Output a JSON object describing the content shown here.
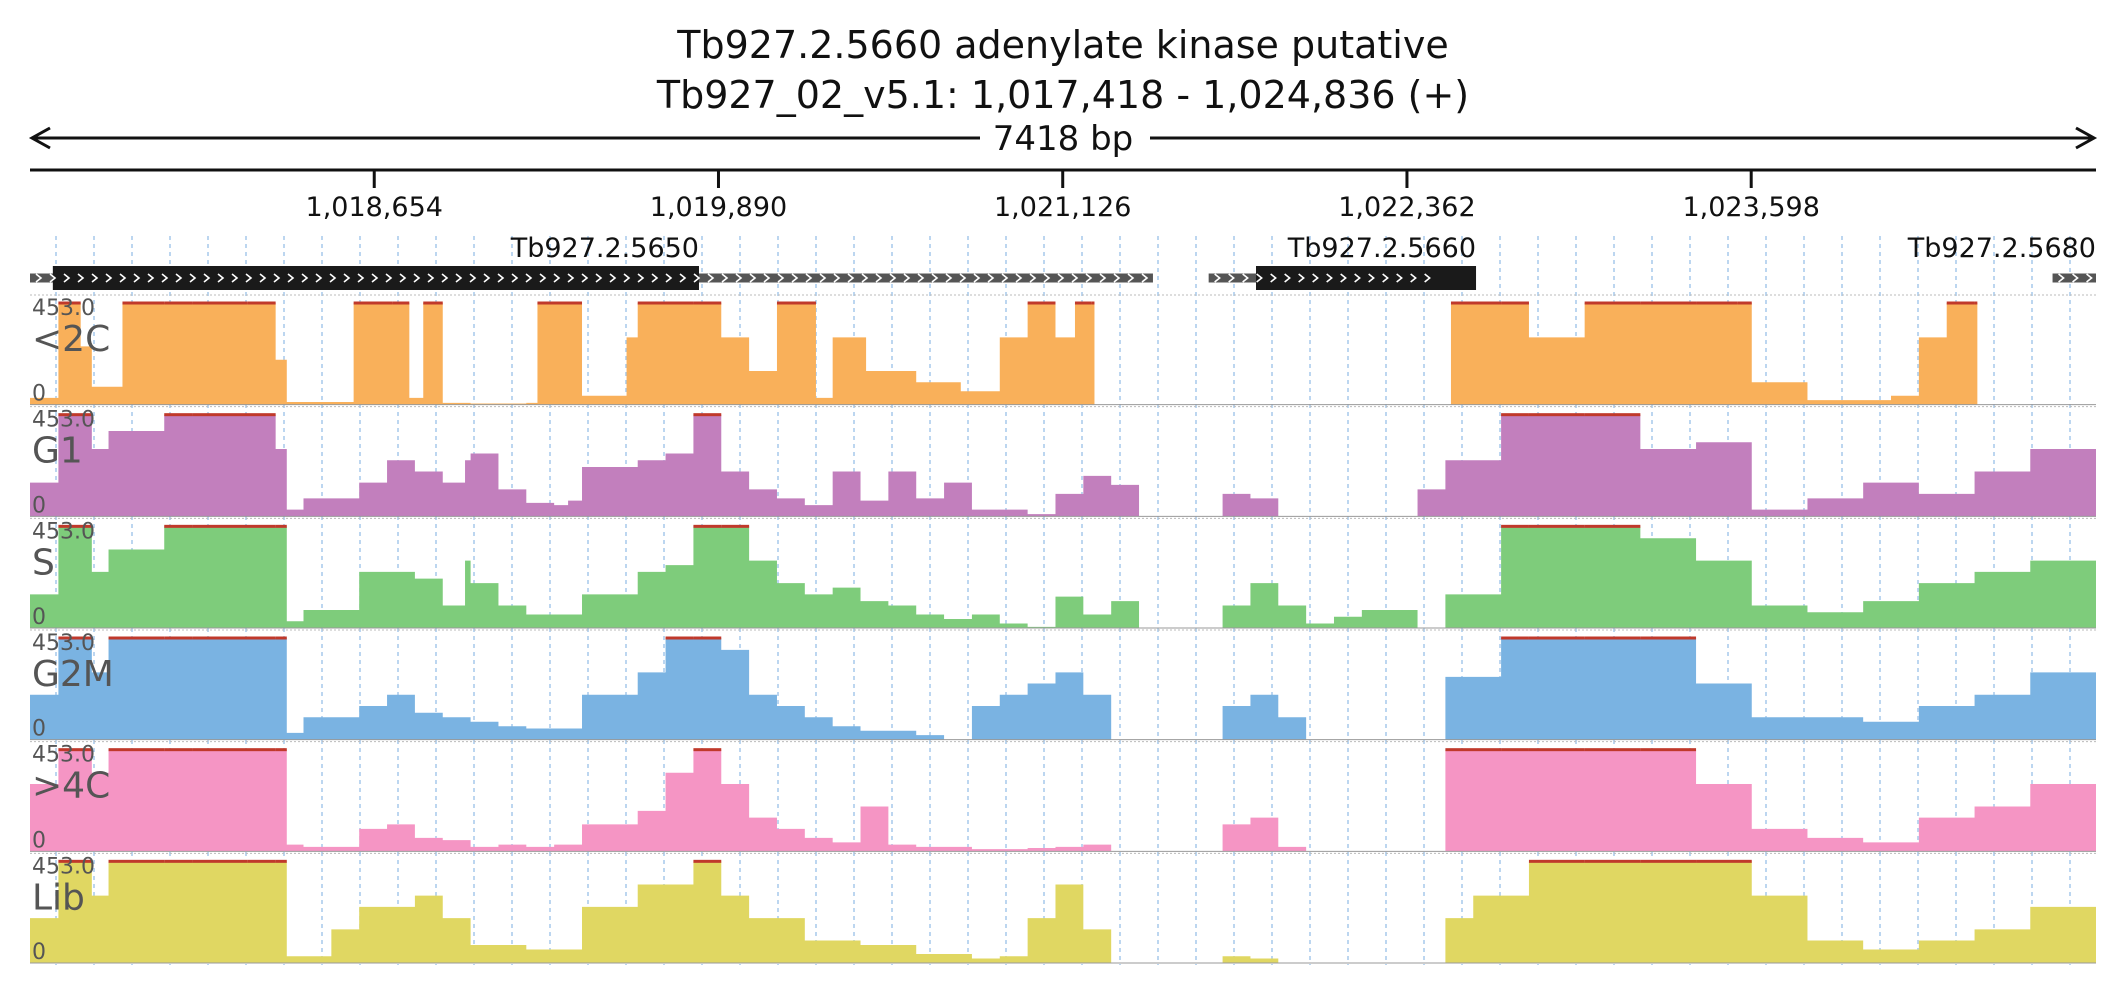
{
  "title": {
    "line1": "Tb927.2.5660  adenylate kinase  putative",
    "line2": "Tb927_02_v5.1: 1,017,418 - 1,024,836 (+)"
  },
  "span_label": "7418 bp",
  "chart_data": {
    "type": "area",
    "region": {
      "chrom": "Tb927_02_v5.1",
      "start": 1017418,
      "end": 1024836,
      "strand": "+"
    },
    "xlim": [
      1017418,
      1024836
    ],
    "x_ticks": [
      {
        "pos": 1018654,
        "label": "1,018,654"
      },
      {
        "pos": 1019890,
        "label": "1,019,890"
      },
      {
        "pos": 1021126,
        "label": "1,021,126"
      },
      {
        "pos": 1022362,
        "label": "1,022,362"
      },
      {
        "pos": 1023598,
        "label": "1,023,598"
      }
    ],
    "genes": [
      {
        "name": "Tb927.2.5650",
        "start": 1017418,
        "end": 1021450,
        "cds_start": 1017500,
        "cds_end": 1019820,
        "strand": "+"
      },
      {
        "name": "Tb927.2.5660",
        "start": 1021650,
        "end": 1022480,
        "cds_start": 1021820,
        "cds_end": 1022610,
        "strand": "+"
      },
      {
        "name": "Tb927.2.5680",
        "start": 1024680,
        "end": 1024836,
        "cds_start": null,
        "cds_end": null,
        "strand": "+"
      }
    ],
    "ylim": [
      0,
      453.0
    ],
    "y_max_label": "453.0",
    "y_min_label": "0",
    "tracks": [
      {
        "name": "<2C",
        "color": "#f9b05a",
        "x": [
          1017418,
          1017520,
          1017600,
          1017640,
          1017750,
          1017900,
          1018000,
          1018200,
          1018300,
          1018340,
          1018420,
          1018580,
          1018720,
          1018780,
          1018830,
          1018900,
          1019000,
          1019200,
          1019240,
          1019400,
          1019560,
          1019600,
          1019800,
          1019900,
          1020000,
          1020100,
          1020240,
          1020300,
          1020420,
          1020600,
          1020760,
          1020900,
          1021000,
          1021100,
          1021170,
          1021230,
          1021240,
          1021300,
          1022400,
          1022520,
          1022700,
          1022800,
          1023000,
          1023200,
          1023400,
          1023550,
          1023600,
          1023800,
          1024100,
          1024200,
          1024300,
          1024400,
          1024410,
          1024520,
          1024836
        ],
        "values": [
          30,
          453,
          260,
          80,
          453,
          453,
          453,
          453,
          200,
          12,
          12,
          453,
          453,
          30,
          453,
          8,
          5,
          8,
          453,
          40,
          300,
          453,
          453,
          300,
          150,
          453,
          30,
          300,
          150,
          100,
          60,
          300,
          453,
          300,
          453,
          453,
          0,
          0,
          0,
          453,
          453,
          300,
          453,
          453,
          453,
          453,
          100,
          20,
          40,
          300,
          453,
          453,
          0,
          0,
          0
        ]
      },
      {
        "name": "G1",
        "color": "#c27fbd",
        "x": [
          1017418,
          1017520,
          1017640,
          1017700,
          1017900,
          1018000,
          1018300,
          1018340,
          1018400,
          1018600,
          1018700,
          1018800,
          1018900,
          1018980,
          1019000,
          1019100,
          1019200,
          1019300,
          1019350,
          1019400,
          1019600,
          1019700,
          1019800,
          1019900,
          1020000,
          1020100,
          1020200,
          1020300,
          1020400,
          1020500,
          1020600,
          1020700,
          1020800,
          1020900,
          1021000,
          1021100,
          1021200,
          1021300,
          1021400,
          1021500,
          1021520,
          1021700,
          1021800,
          1021900,
          1022100,
          1022200,
          1022400,
          1022500,
          1022700,
          1022800,
          1023000,
          1023200,
          1023400,
          1023600,
          1023800,
          1024000,
          1024200,
          1024400,
          1024600,
          1024836
        ],
        "values": [
          150,
          453,
          300,
          380,
          453,
          453,
          300,
          30,
          80,
          150,
          250,
          200,
          150,
          250,
          280,
          120,
          60,
          50,
          70,
          220,
          250,
          280,
          453,
          200,
          120,
          80,
          50,
          200,
          70,
          200,
          80,
          150,
          30,
          30,
          10,
          100,
          180,
          140,
          0,
          0,
          0,
          100,
          80,
          0,
          0,
          0,
          120,
          250,
          453,
          453,
          453,
          300,
          330,
          30,
          80,
          150,
          100,
          200,
          300,
          453
        ]
      },
      {
        "name": "S",
        "color": "#7ecc7b",
        "x": [
          1017418,
          1017520,
          1017640,
          1017700,
          1017900,
          1018000,
          1018300,
          1018340,
          1018400,
          1018600,
          1018800,
          1018900,
          1018980,
          1019000,
          1019100,
          1019200,
          1019400,
          1019600,
          1019700,
          1019800,
          1019900,
          1020000,
          1020100,
          1020200,
          1020300,
          1020400,
          1020500,
          1020600,
          1020700,
          1020800,
          1020900,
          1021000,
          1021100,
          1021200,
          1021300,
          1021400,
          1021500,
          1021520,
          1021700,
          1021800,
          1021900,
          1022000,
          1022100,
          1022200,
          1022400,
          1022500,
          1022700,
          1022800,
          1023000,
          1023200,
          1023400,
          1023600,
          1023800,
          1024000,
          1024200,
          1024400,
          1024600,
          1024836
        ],
        "values": [
          150,
          453,
          250,
          350,
          453,
          453,
          453,
          30,
          80,
          250,
          220,
          100,
          300,
          200,
          100,
          60,
          150,
          250,
          280,
          453,
          453,
          300,
          200,
          150,
          180,
          120,
          100,
          60,
          40,
          60,
          20,
          5,
          140,
          60,
          120,
          0,
          0,
          0,
          100,
          200,
          100,
          20,
          50,
          80,
          0,
          150,
          453,
          453,
          453,
          400,
          300,
          100,
          70,
          120,
          200,
          250,
          300,
          453
        ]
      },
      {
        "name": "G2M",
        "color": "#7ab3e2",
        "x": [
          1017418,
          1017520,
          1017640,
          1017700,
          1017900,
          1018000,
          1018300,
          1018340,
          1018400,
          1018600,
          1018700,
          1018800,
          1018900,
          1019000,
          1019100,
          1019200,
          1019300,
          1019400,
          1019600,
          1019700,
          1019800,
          1019900,
          1020000,
          1020100,
          1020200,
          1020300,
          1020400,
          1020500,
          1020600,
          1020700,
          1020800,
          1020900,
          1021000,
          1021100,
          1021200,
          1021300,
          1021400,
          1021500,
          1021520,
          1021700,
          1021800,
          1021900,
          1022000,
          1022100,
          1022200,
          1022400,
          1022500,
          1022700,
          1022800,
          1023000,
          1023200,
          1023400,
          1023600,
          1023800,
          1024000,
          1024200,
          1024400,
          1024600,
          1024836
        ],
        "values": [
          200,
          453,
          300,
          453,
          453,
          453,
          453,
          30,
          100,
          150,
          200,
          120,
          100,
          80,
          60,
          50,
          50,
          200,
          300,
          453,
          453,
          400,
          200,
          150,
          100,
          60,
          40,
          40,
          20,
          0,
          150,
          200,
          250,
          300,
          200,
          0,
          0,
          0,
          0,
          150,
          200,
          100,
          0,
          0,
          0,
          0,
          280,
          453,
          453,
          453,
          453,
          250,
          100,
          100,
          80,
          150,
          200,
          300,
          453
        ]
      },
      {
        "name": ">4C",
        "color": "#f595c4",
        "x": [
          1017418,
          1017520,
          1017640,
          1017700,
          1017900,
          1018000,
          1018300,
          1018340,
          1018400,
          1018600,
          1018700,
          1018800,
          1018900,
          1019000,
          1019100,
          1019200,
          1019300,
          1019400,
          1019600,
          1019700,
          1019800,
          1019900,
          1020000,
          1020100,
          1020200,
          1020300,
          1020400,
          1020500,
          1020600,
          1020700,
          1020800,
          1020900,
          1021000,
          1021100,
          1021200,
          1021300,
          1021400,
          1021500,
          1021520,
          1021700,
          1021800,
          1021900,
          1022000,
          1022100,
          1022200,
          1022400,
          1022500,
          1022700,
          1022800,
          1023000,
          1023200,
          1023400,
          1023600,
          1023800,
          1024000,
          1024200,
          1024400,
          1024600,
          1024836
        ],
        "values": [
          300,
          453,
          350,
          453,
          453,
          453,
          453,
          30,
          20,
          100,
          120,
          60,
          50,
          20,
          30,
          20,
          30,
          120,
          180,
          350,
          453,
          300,
          150,
          100,
          60,
          40,
          200,
          30,
          20,
          20,
          10,
          10,
          15,
          20,
          30,
          0,
          0,
          0,
          0,
          120,
          150,
          20,
          0,
          0,
          0,
          0,
          453,
          453,
          453,
          453,
          453,
          300,
          100,
          60,
          40,
          150,
          200,
          300,
          453
        ]
      },
      {
        "name": "Lib",
        "color": "#e0d762",
        "x": [
          1017418,
          1017520,
          1017640,
          1017700,
          1017900,
          1018000,
          1018200,
          1018300,
          1018340,
          1018500,
          1018600,
          1018800,
          1018900,
          1019000,
          1019200,
          1019400,
          1019600,
          1019800,
          1019900,
          1020000,
          1020200,
          1020400,
          1020600,
          1020800,
          1020900,
          1021000,
          1021100,
          1021200,
          1021300,
          1021400,
          1021500,
          1021520,
          1021700,
          1021800,
          1021900,
          1022000,
          1022100,
          1022200,
          1022400,
          1022500,
          1022600,
          1022800,
          1023000,
          1023200,
          1023400,
          1023600,
          1023800,
          1024000,
          1024200,
          1024400,
          1024600,
          1024836
        ],
        "values": [
          200,
          453,
          300,
          453,
          453,
          453,
          453,
          453,
          30,
          150,
          250,
          300,
          200,
          80,
          60,
          250,
          350,
          453,
          300,
          200,
          100,
          80,
          40,
          20,
          30,
          200,
          350,
          150,
          0,
          0,
          0,
          0,
          30,
          20,
          0,
          0,
          0,
          0,
          0,
          200,
          300,
          453,
          453,
          453,
          453,
          300,
          100,
          60,
          100,
          150,
          250,
          453
        ]
      }
    ]
  }
}
